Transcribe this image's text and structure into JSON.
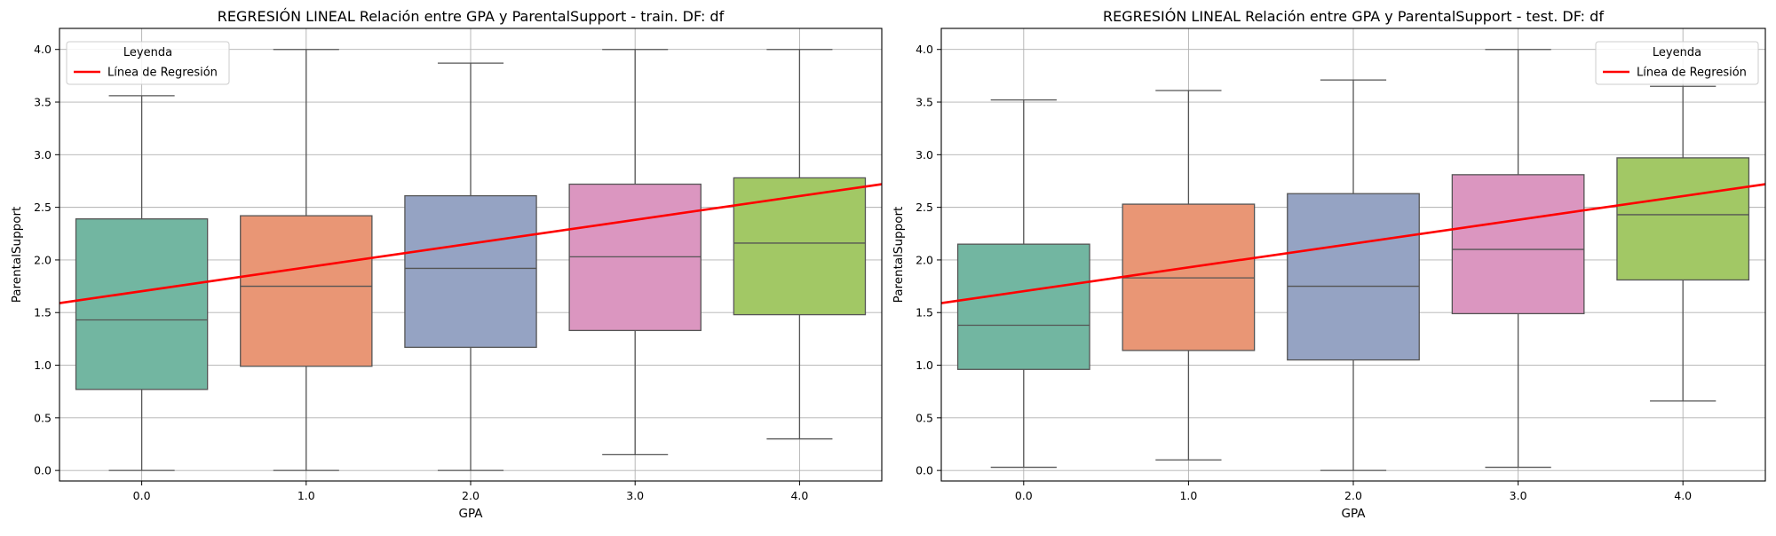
{
  "colors": {
    "0.0": "#72b6a1",
    "1.0": "#e99675",
    "2.0": "#95a3c3",
    "3.0": "#db96c0",
    "4.0": "#a2c865",
    "regression": "#ff0000"
  },
  "chart_data": [
    {
      "type": "boxplot",
      "title": "REGRESIÓN LINEAL Relación entre GPA y ParentalSupport - train. DF: df",
      "xlabel": "GPA",
      "ylabel": "ParentalSupport",
      "categories": [
        "0.0",
        "1.0",
        "2.0",
        "3.0",
        "4.0"
      ],
      "ylim": [
        -0.1,
        4.2
      ],
      "yticks": [
        "0.0",
        "0.5",
        "1.0",
        "1.5",
        "2.0",
        "2.5",
        "3.0",
        "3.5",
        "4.0"
      ],
      "grid": true,
      "boxes": [
        {
          "min": 0.0,
          "q1": 0.77,
          "median": 1.43,
          "q3": 2.39,
          "max": 3.56
        },
        {
          "min": 0.0,
          "q1": 0.99,
          "median": 1.75,
          "q3": 2.42,
          "max": 4.0
        },
        {
          "min": 0.0,
          "q1": 1.17,
          "median": 1.92,
          "q3": 2.61,
          "max": 3.87
        },
        {
          "min": 0.15,
          "q1": 1.33,
          "median": 2.03,
          "q3": 2.72,
          "max": 4.0
        },
        {
          "min": 0.3,
          "q1": 1.48,
          "median": 2.16,
          "q3": 2.78,
          "max": 4.0
        }
      ],
      "regression": {
        "x": [
          -0.5,
          4.5
        ],
        "y": [
          1.59,
          2.72
        ]
      },
      "legend": {
        "title": "Leyenda",
        "entries": [
          "Línea de Regresión"
        ],
        "position": "upper-left"
      }
    },
    {
      "type": "boxplot",
      "title": "REGRESIÓN LINEAL Relación entre GPA y ParentalSupport - test. DF: df",
      "xlabel": "GPA",
      "ylabel": "ParentalSupport",
      "categories": [
        "0.0",
        "1.0",
        "2.0",
        "3.0",
        "4.0"
      ],
      "ylim": [
        -0.1,
        4.2
      ],
      "yticks": [
        "0.0",
        "0.5",
        "1.0",
        "1.5",
        "2.0",
        "2.5",
        "3.0",
        "3.5",
        "4.0"
      ],
      "grid": true,
      "boxes": [
        {
          "min": 0.03,
          "q1": 0.96,
          "median": 1.38,
          "q3": 2.15,
          "max": 3.52
        },
        {
          "min": 0.1,
          "q1": 1.14,
          "median": 1.83,
          "q3": 2.53,
          "max": 3.61
        },
        {
          "min": 0.0,
          "q1": 1.05,
          "median": 1.75,
          "q3": 2.63,
          "max": 3.71
        },
        {
          "min": 0.03,
          "q1": 1.49,
          "median": 2.1,
          "q3": 2.81,
          "max": 4.0
        },
        {
          "min": 0.66,
          "q1": 1.81,
          "median": 2.43,
          "q3": 2.97,
          "max": 3.65
        }
      ],
      "regression": {
        "x": [
          -0.5,
          4.5
        ],
        "y": [
          1.59,
          2.72
        ]
      },
      "legend": {
        "title": "Leyenda",
        "entries": [
          "Línea de Regresión"
        ],
        "position": "upper-right"
      }
    }
  ]
}
